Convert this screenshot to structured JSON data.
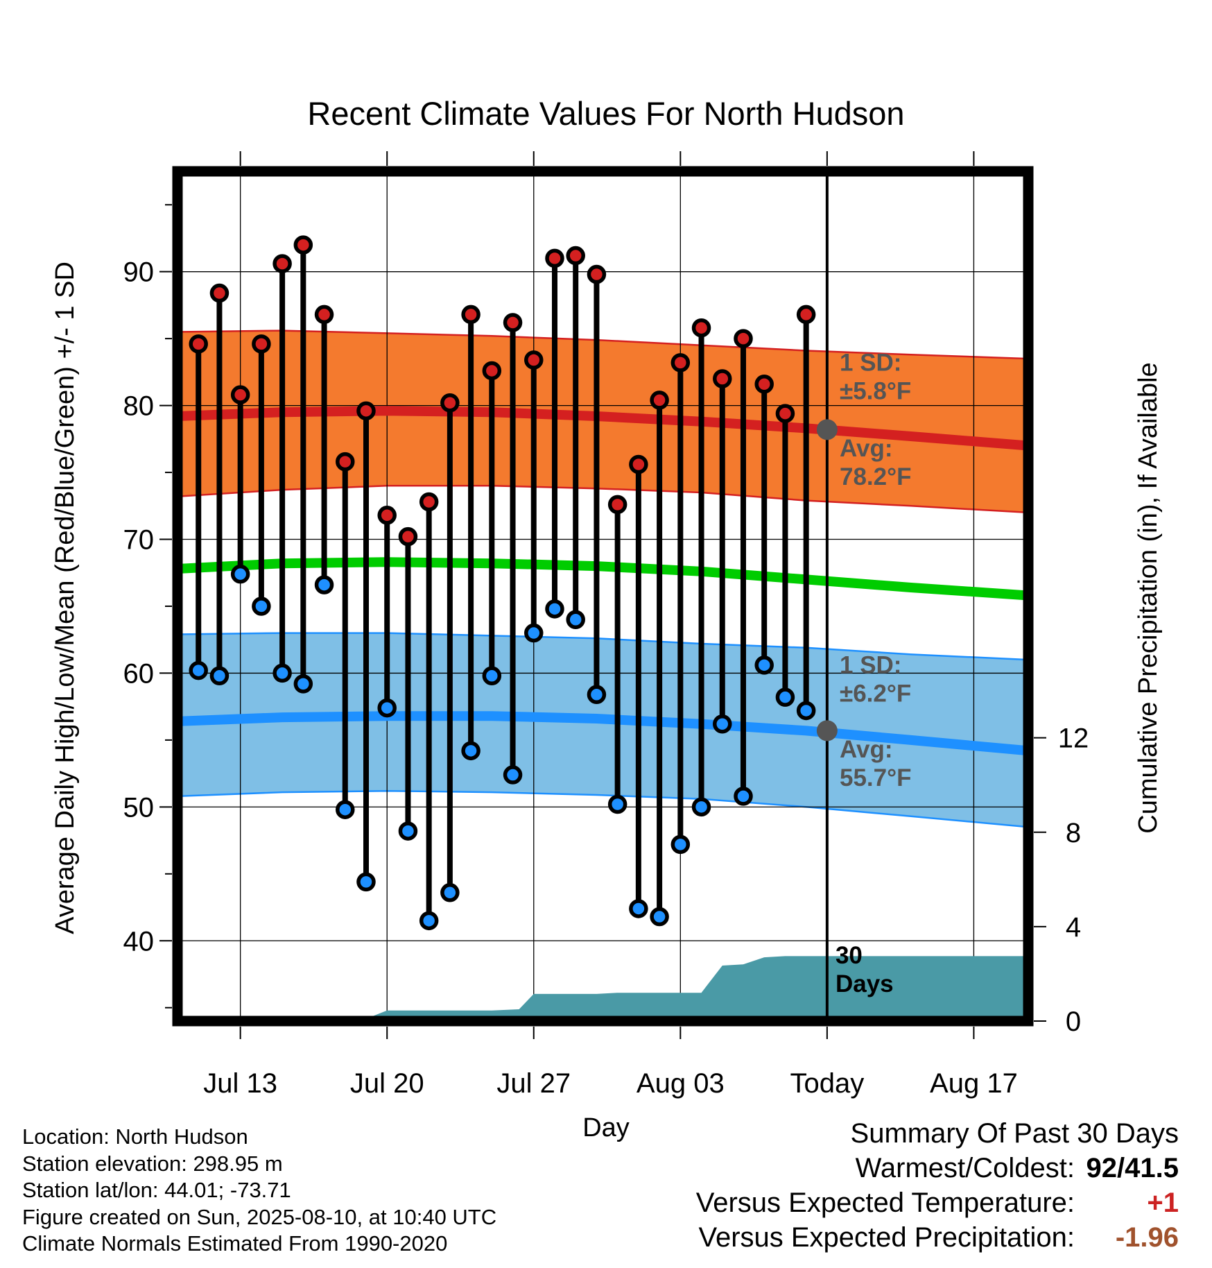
{
  "chart_data": {
    "type": "line",
    "title": "Recent Climate Values For North Hudson",
    "xlabel": "Day",
    "ylabel_left": "Average Daily High/Low/Mean (Red/Blue/Green) +/- 1 SD",
    "ylabel_right": "Cumulative Precipitation (in), If Available",
    "x_ticks": [
      {
        "day": 3,
        "label": "Jul 13"
      },
      {
        "day": 10,
        "label": "Jul 20"
      },
      {
        "day": 17,
        "label": "Jul 27"
      },
      {
        "day": 24,
        "label": "Aug 03"
      },
      {
        "day": 31,
        "label": "Today"
      },
      {
        "day": 38,
        "label": "Aug 17"
      }
    ],
    "xlim": [
      0,
      40.6
    ],
    "ylim": [
      34,
      97.5
    ],
    "y_ticks": [
      40,
      50,
      60,
      70,
      80,
      90
    ],
    "y_minor_ticks": [
      35,
      45,
      55,
      65,
      75,
      85,
      95
    ],
    "y2_ticks": [
      0,
      4,
      8,
      12
    ],
    "y2_lim": [
      0,
      36
    ],
    "today_day": 31,
    "days": [
      1,
      2,
      3,
      4,
      5,
      6,
      7,
      8,
      9,
      10,
      11,
      12,
      13,
      14,
      15,
      16,
      17,
      18,
      19,
      20,
      21,
      22,
      23,
      24,
      25,
      26,
      27,
      28,
      29,
      30
    ],
    "series": [
      {
        "name": "High",
        "color": "#d42020",
        "values": [
          84.6,
          88.4,
          80.8,
          84.6,
          90.6,
          92.0,
          86.8,
          75.8,
          79.6,
          71.8,
          70.2,
          72.8,
          80.2,
          86.8,
          82.6,
          86.2,
          83.4,
          91.0,
          91.2,
          89.8,
          72.6,
          75.6,
          80.4,
          83.2,
          85.8,
          82.0,
          85.0,
          81.6,
          79.4,
          86.8
        ]
      },
      {
        "name": "Low",
        "color": "#1e90ff",
        "values": [
          60.2,
          59.8,
          67.4,
          65.0,
          60.0,
          59.2,
          66.6,
          49.8,
          44.4,
          57.4,
          48.2,
          41.5,
          43.6,
          54.2,
          59.8,
          52.4,
          63.0,
          64.8,
          64.0,
          58.4,
          50.2,
          42.4,
          41.8,
          47.2,
          50.0,
          56.2,
          50.8,
          60.6,
          58.2,
          57.2
        ]
      }
    ],
    "normals_day": [
      0,
      5,
      10,
      15,
      20,
      25,
      30,
      35,
      40.6
    ],
    "normal_high": [
      79.2,
      79.5,
      79.6,
      79.5,
      79.2,
      78.8,
      78.3,
      77.7,
      77.0
    ],
    "normal_high_sd_upper": [
      85.5,
      85.6,
      85.4,
      85.2,
      84.9,
      84.5,
      84.1,
      83.8,
      83.5
    ],
    "normal_high_sd_lower": [
      73.2,
      73.7,
      74.0,
      74.0,
      73.8,
      73.5,
      72.9,
      72.5,
      72.0
    ],
    "normal_mean": [
      67.8,
      68.2,
      68.3,
      68.2,
      68.0,
      67.6,
      67.0,
      66.4,
      65.8
    ],
    "normal_low": [
      56.4,
      56.7,
      56.8,
      56.8,
      56.6,
      56.2,
      55.7,
      55.0,
      54.2
    ],
    "normal_low_sd_upper": [
      62.9,
      63.0,
      63.0,
      62.8,
      62.6,
      62.2,
      61.9,
      61.4,
      61.0
    ],
    "normal_low_sd_lower": [
      50.8,
      51.1,
      51.2,
      51.1,
      50.9,
      50.6,
      50.0,
      49.3,
      48.5
    ],
    "precip": {
      "color": "#4a9aa6",
      "days": [
        0,
        6,
        7,
        9,
        10,
        15,
        16.3,
        17,
        20,
        21,
        25,
        26,
        27,
        28,
        29,
        31,
        40.6
      ],
      "values": [
        0,
        0,
        0.05,
        0.1,
        0.45,
        0.45,
        0.5,
        1.15,
        1.15,
        1.2,
        1.2,
        2.35,
        2.4,
        2.7,
        2.75,
        2.75,
        2.75
      ]
    },
    "annotations": [
      {
        "text_l1": "1 SD:",
        "text_l2": "±5.8°F",
        "anchor_day": 31.6,
        "anchor_value": 82.6,
        "color": "#555555"
      },
      {
        "text_l1": "Avg:",
        "text_l2": "78.2°F",
        "anchor_day": 31.6,
        "anchor_value": 76.2,
        "color": "#555555",
        "marker_value": 78.2
      },
      {
        "text_l1": "1 SD:",
        "text_l2": "±6.2°F",
        "anchor_day": 31.6,
        "anchor_value": 60.0,
        "color": "#555555"
      },
      {
        "text_l1": "Avg:",
        "text_l2": "55.7°F",
        "anchor_day": 31.6,
        "anchor_value": 53.7,
        "color": "#555555",
        "marker_value": 55.7
      },
      {
        "text_l1": "30",
        "text_l2": "Days",
        "anchor_day": 31.4,
        "anchor_value": 38.3,
        "color": "#000000"
      }
    ],
    "band_colors": {
      "high_band": "#f47a2e",
      "high_band_edge": "#d42020",
      "high_avg": "#d42020",
      "mean_line": "#00cc00",
      "low_band": "#7fbfe6",
      "low_band_edge": "#1e90ff",
      "low_avg": "#1e90ff",
      "avg_marker": "#555555"
    }
  },
  "info": {
    "location": "Location: North Hudson",
    "elevation": "Station elevation: 298.95 m",
    "latlon": "Station lat/lon: 44.01; -73.71",
    "created": "Figure created on Sun, 2025-08-10, at 10:40 UTC",
    "normals": "Climate Normals Estimated From 1990-2020"
  },
  "summary": {
    "title": "Summary Of Past 30 Days",
    "warmest_label": "Warmest/Coldest:",
    "warmest_value": "92/41.5",
    "temp_label": "Versus Expected Temperature:",
    "temp_value": "+1",
    "temp_color": "#cc2222",
    "precip_label": "Versus Expected Precipitation:",
    "precip_value": "-1.96",
    "precip_color": "#a0522d"
  }
}
